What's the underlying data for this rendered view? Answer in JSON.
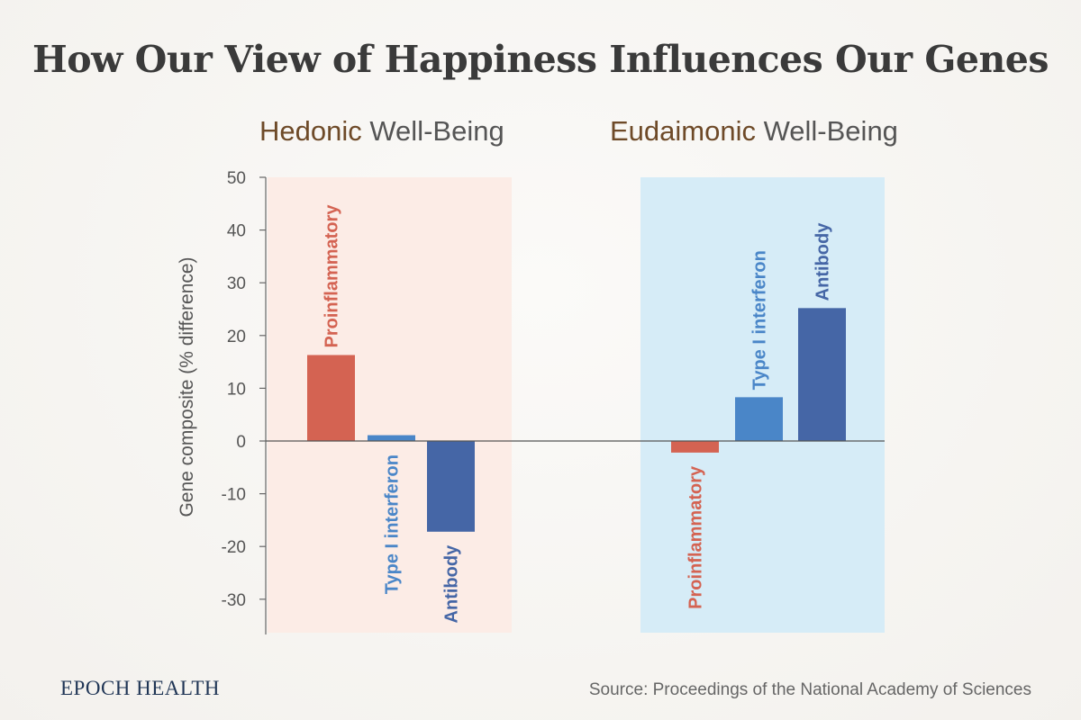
{
  "title": "How Our View of Happiness Influences Our Genes",
  "brand": "EPOCH HEALTH",
  "source": "Source: Proceedings of the National  Academy of Sciences",
  "chart_data": {
    "type": "bar",
    "ylabel": "Gene composite (% difference)",
    "ylim": [
      -37,
      50
    ],
    "yticks": [
      50,
      40,
      30,
      20,
      10,
      0,
      -10,
      -20,
      -30
    ],
    "grid": false,
    "groups": [
      {
        "keyword": "Hedonic",
        "rest": " Well-Being",
        "background": "#fcece6",
        "bars": [
          {
            "label": "Proinflammatory",
            "value": 16.3,
            "color": "#d46352"
          },
          {
            "label": "Type I interferon",
            "value": 1.1,
            "color": "#4a86c8"
          },
          {
            "label": "Antibody",
            "value": -17.2,
            "color": "#4566a6"
          }
        ]
      },
      {
        "keyword": "Eudaimonic",
        "rest": " Well-Being",
        "background": "#d6ecf7",
        "bars": [
          {
            "label": "Proinflammatory",
            "value": -2.2,
            "color": "#d46352"
          },
          {
            "label": "Type I interferon",
            "value": 8.3,
            "color": "#4a86c8"
          },
          {
            "label": "Antibody",
            "value": 25.2,
            "color": "#4566a6"
          }
        ]
      }
    ]
  }
}
